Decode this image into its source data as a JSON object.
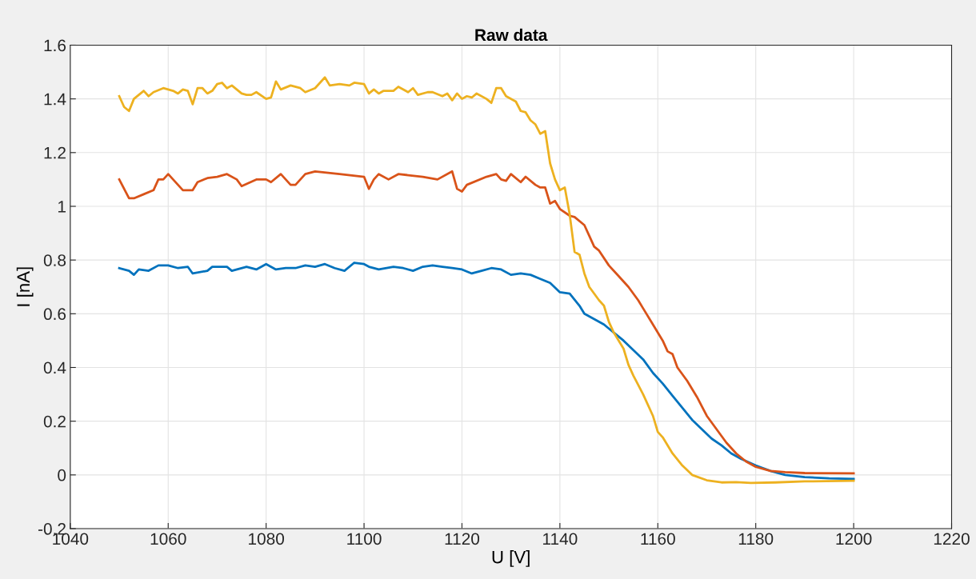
{
  "chart_data": {
    "type": "line",
    "title": "Raw data",
    "xlabel": "U [V]",
    "ylabel": "I [nA]",
    "xlim": [
      1040,
      1220
    ],
    "xticks": [
      1040,
      1060,
      1080,
      1100,
      1120,
      1140,
      1160,
      1180,
      1200,
      1220
    ],
    "ylim": [
      -0.2,
      1.6
    ],
    "yticks": [
      -0.2,
      0,
      0.2,
      0.4,
      0.6,
      0.8,
      1,
      1.2,
      1.4,
      1.6
    ],
    "grid": true,
    "line_style": "solid",
    "series": [
      {
        "color": "#0072bd",
        "x": [
          1050,
          1052,
          1053,
          1054,
          1056,
          1058,
          1060,
          1062,
          1064,
          1065,
          1068,
          1069,
          1072,
          1073,
          1076,
          1078,
          1080,
          1082,
          1084,
          1086,
          1088,
          1090,
          1092,
          1094,
          1096,
          1098,
          1100,
          1101,
          1103,
          1106,
          1108,
          1110,
          1112,
          1114,
          1116,
          1118,
          1120,
          1122,
          1124,
          1126,
          1128,
          1130,
          1132,
          1134,
          1136,
          1138,
          1140,
          1142,
          1144,
          1145,
          1147,
          1149,
          1151,
          1153,
          1155,
          1157,
          1159,
          1161,
          1163,
          1165,
          1167,
          1169,
          1171,
          1173,
          1175,
          1177,
          1180,
          1183,
          1186,
          1190,
          1195,
          1200
        ],
        "values": [
          0.77,
          0.76,
          0.745,
          0.765,
          0.76,
          0.78,
          0.78,
          0.77,
          0.775,
          0.75,
          0.76,
          0.775,
          0.775,
          0.76,
          0.775,
          0.765,
          0.785,
          0.765,
          0.77,
          0.77,
          0.78,
          0.775,
          0.785,
          0.77,
          0.76,
          0.79,
          0.785,
          0.775,
          0.765,
          0.775,
          0.77,
          0.76,
          0.775,
          0.78,
          0.775,
          0.77,
          0.765,
          0.75,
          0.76,
          0.77,
          0.765,
          0.745,
          0.75,
          0.745,
          0.73,
          0.715,
          0.68,
          0.675,
          0.63,
          0.6,
          0.58,
          0.56,
          0.53,
          0.5,
          0.465,
          0.43,
          0.38,
          0.34,
          0.295,
          0.25,
          0.205,
          0.17,
          0.135,
          0.11,
          0.08,
          0.06,
          0.035,
          0.015,
          0.0,
          -0.008,
          -0.013,
          -0.015
        ]
      },
      {
        "color": "#d95319",
        "x": [
          1050,
          1052,
          1053,
          1055,
          1057,
          1058,
          1059,
          1060,
          1063,
          1065,
          1066,
          1068,
          1070,
          1072,
          1074,
          1075,
          1078,
          1080,
          1081,
          1083,
          1085,
          1086,
          1088,
          1090,
          1095,
          1100,
          1101,
          1102,
          1103,
          1105,
          1107,
          1112,
          1115,
          1118,
          1119,
          1120,
          1121,
          1125,
          1127,
          1128,
          1129,
          1130,
          1132,
          1133,
          1135,
          1136,
          1137,
          1138,
          1139,
          1140,
          1142,
          1143,
          1145,
          1146,
          1147,
          1148,
          1150,
          1152,
          1154,
          1156,
          1157,
          1159,
          1161,
          1162,
          1163,
          1164,
          1166,
          1168,
          1170,
          1172,
          1174,
          1176,
          1178,
          1180,
          1183,
          1186,
          1190,
          1200
        ],
        "values": [
          1.1,
          1.03,
          1.03,
          1.045,
          1.06,
          1.1,
          1.1,
          1.12,
          1.06,
          1.06,
          1.09,
          1.105,
          1.11,
          1.12,
          1.1,
          1.075,
          1.1,
          1.1,
          1.09,
          1.12,
          1.08,
          1.08,
          1.12,
          1.13,
          1.12,
          1.11,
          1.065,
          1.1,
          1.12,
          1.1,
          1.12,
          1.11,
          1.1,
          1.13,
          1.065,
          1.055,
          1.08,
          1.11,
          1.12,
          1.1,
          1.095,
          1.12,
          1.09,
          1.11,
          1.08,
          1.07,
          1.07,
          1.01,
          1.02,
          0.99,
          0.965,
          0.96,
          0.93,
          0.89,
          0.85,
          0.835,
          0.78,
          0.74,
          0.7,
          0.65,
          0.62,
          0.56,
          0.5,
          0.46,
          0.45,
          0.4,
          0.35,
          0.29,
          0.22,
          0.17,
          0.12,
          0.08,
          0.05,
          0.03,
          0.015,
          0.01,
          0.007,
          0.006
        ]
      },
      {
        "color": "#edb120",
        "x": [
          1050,
          1051,
          1052,
          1053,
          1055,
          1056,
          1057,
          1059,
          1061,
          1062,
          1063,
          1064,
          1065,
          1066,
          1067,
          1068,
          1069,
          1070,
          1071,
          1072,
          1073,
          1075,
          1076,
          1077,
          1078,
          1080,
          1081,
          1082,
          1083,
          1085,
          1087,
          1088,
          1090,
          1091,
          1092,
          1093,
          1095,
          1097,
          1098,
          1100,
          1101,
          1102,
          1103,
          1104,
          1106,
          1107,
          1109,
          1110,
          1111,
          1113,
          1114,
          1116,
          1117,
          1118,
          1119,
          1120,
          1121,
          1122,
          1123,
          1125,
          1126,
          1127,
          1128,
          1129,
          1131,
          1132,
          1133,
          1134,
          1135,
          1136,
          1137,
          1138,
          1139,
          1140,
          1141,
          1142,
          1143,
          1144,
          1145,
          1146,
          1148,
          1149,
          1150,
          1151,
          1153,
          1154,
          1155,
          1157,
          1159,
          1160,
          1161,
          1163,
          1165,
          1167,
          1170,
          1173,
          1176,
          1179,
          1184,
          1190,
          1200
        ],
        "values": [
          1.41,
          1.37,
          1.355,
          1.4,
          1.43,
          1.41,
          1.425,
          1.44,
          1.43,
          1.42,
          1.435,
          1.43,
          1.38,
          1.44,
          1.44,
          1.42,
          1.43,
          1.455,
          1.46,
          1.44,
          1.45,
          1.42,
          1.415,
          1.415,
          1.425,
          1.4,
          1.405,
          1.465,
          1.435,
          1.45,
          1.44,
          1.425,
          1.44,
          1.46,
          1.48,
          1.45,
          1.455,
          1.45,
          1.46,
          1.455,
          1.42,
          1.435,
          1.42,
          1.43,
          1.43,
          1.445,
          1.425,
          1.44,
          1.415,
          1.425,
          1.425,
          1.41,
          1.42,
          1.395,
          1.42,
          1.4,
          1.41,
          1.405,
          1.42,
          1.4,
          1.385,
          1.44,
          1.44,
          1.41,
          1.39,
          1.355,
          1.35,
          1.32,
          1.305,
          1.27,
          1.28,
          1.16,
          1.1,
          1.06,
          1.07,
          0.97,
          0.83,
          0.82,
          0.75,
          0.7,
          0.65,
          0.63,
          0.57,
          0.53,
          0.47,
          0.41,
          0.37,
          0.3,
          0.22,
          0.16,
          0.14,
          0.08,
          0.035,
          0.0,
          -0.02,
          -0.028,
          -0.027,
          -0.03,
          -0.028,
          -0.024,
          -0.022
        ]
      }
    ]
  }
}
